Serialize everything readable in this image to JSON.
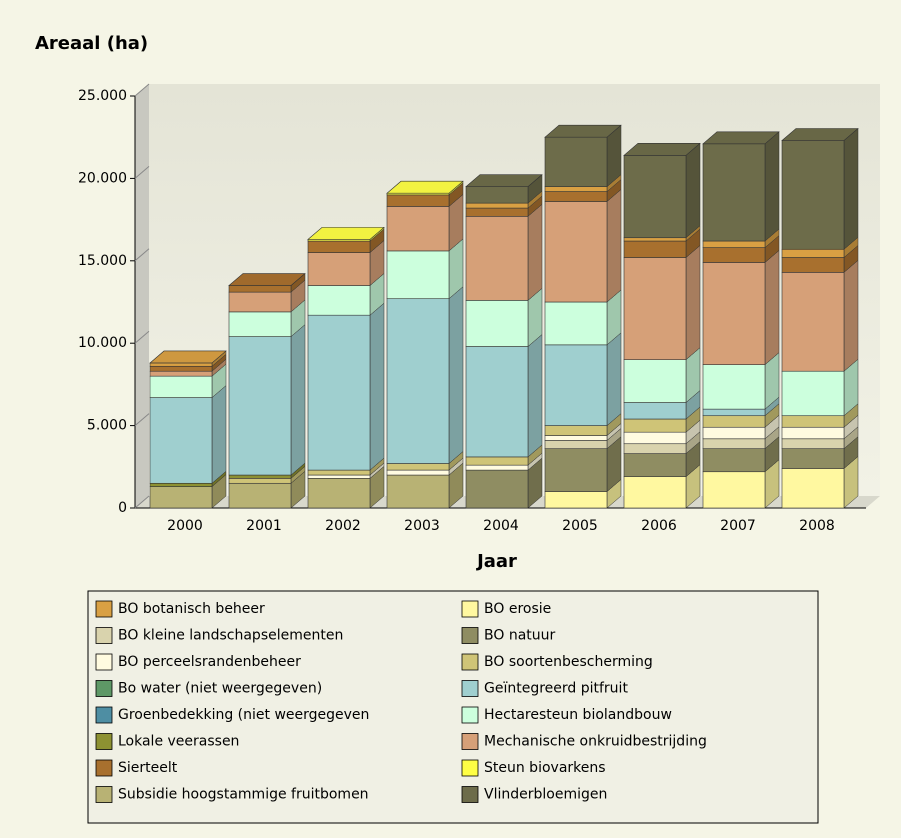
{
  "chart_data": {
    "type": "bar3d_stacked",
    "ylabel": "Areaal (ha)",
    "xlabel": "Jaar",
    "categories": [
      "2000",
      "2001",
      "2002",
      "2003",
      "2004",
      "2005",
      "2006",
      "2007",
      "2008"
    ],
    "ylim": [
      0,
      25000
    ],
    "yticks": [
      0,
      {
        "value": 5000,
        "label": "5.000"
      },
      {
        "value": 10000,
        "label": "10.000"
      },
      {
        "value": 15000,
        "label": "15.000"
      },
      {
        "value": 20000,
        "label": "20.000"
      },
      {
        "value": 25000,
        "label": "25.000"
      }
    ],
    "series": [
      {
        "name": "BO botanisch beheer",
        "color": "#d9a043",
        "values": [
          200,
          0,
          0,
          0,
          300,
          300,
          200,
          400,
          500
        ]
      },
      {
        "name": "BO erosie",
        "color": "#fff8a0",
        "values": [
          0,
          0,
          0,
          0,
          0,
          1000,
          1900,
          2200,
          2400
        ]
      },
      {
        "name": "BO kleine landschapselementen",
        "color": "#d9d3ad",
        "values": [
          0,
          0,
          0,
          0,
          0,
          500,
          600,
          600,
          600
        ]
      },
      {
        "name": "BO natuur",
        "color": "#8f8d62",
        "values": [
          0,
          0,
          0,
          0,
          2300,
          2600,
          1400,
          1400,
          1200
        ]
      },
      {
        "name": "BO perceelsrandenbeheer",
        "color": "#fffbe0",
        "values": [
          0,
          0,
          200,
          300,
          300,
          300,
          700,
          700,
          700
        ]
      },
      {
        "name": "BO soortenbescherming",
        "color": "#cfc477",
        "values": [
          0,
          300,
          300,
          400,
          500,
          600,
          800,
          700,
          700
        ]
      },
      {
        "name": "Bo water  (niet weergegeven)",
        "color": "#5e9866",
        "values": [
          0,
          0,
          0,
          0,
          0,
          0,
          0,
          0,
          0
        ]
      },
      {
        "name": "Geïntegreerd pitfruit",
        "color": "#9fcfcf",
        "values": [
          5200,
          8400,
          9400,
          10000,
          6700,
          4900,
          1000,
          400,
          0
        ]
      },
      {
        "name": "Groenbedekking (niet weergegeven",
        "color": "#4e8ea3",
        "values": [
          0,
          0,
          0,
          0,
          0,
          0,
          0,
          0,
          0
        ]
      },
      {
        "name": "Hectaresteun biolandbouw",
        "color": "#ccffdd",
        "values": [
          1300,
          1500,
          1800,
          2900,
          2800,
          2600,
          2600,
          2700,
          2700
        ]
      },
      {
        "name": "Lokale veerassen",
        "color": "#8d9132",
        "values": [
          200,
          200,
          0,
          0,
          0,
          0,
          0,
          0,
          0
        ]
      },
      {
        "name": "Mechanische onkruidbestrijding",
        "color": "#d6a078",
        "values": [
          300,
          1200,
          2000,
          2700,
          5100,
          6100,
          6200,
          6200,
          6000
        ]
      },
      {
        "name": "Sierteelt",
        "color": "#a8702e",
        "values": [
          300,
          400,
          700,
          700,
          500,
          600,
          1000,
          900,
          900
        ]
      },
      {
        "name": "Steun biovarkens",
        "color": "#ffff44",
        "values": [
          0,
          0,
          100,
          100,
          0,
          0,
          0,
          0,
          0
        ]
      },
      {
        "name": "Subsidie hoogstammige fruitbomen",
        "color": "#b8b274",
        "values": [
          1300,
          1500,
          1800,
          2000,
          0,
          0,
          0,
          0,
          0
        ]
      },
      {
        "name": "Vlinderbloemigen",
        "color": "#6d6c4a",
        "values": [
          0,
          0,
          0,
          0,
          1000,
          3000,
          5000,
          5900,
          6600
        ]
      }
    ]
  }
}
